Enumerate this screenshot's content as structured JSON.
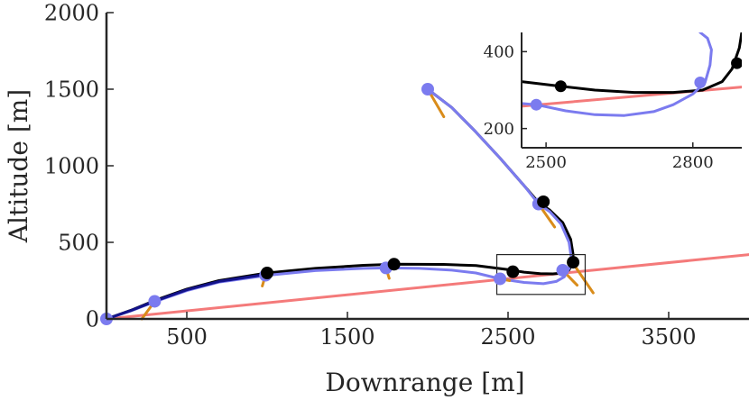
{
  "chart_data": [
    {
      "type": "line",
      "panel": "main",
      "xlabel": "Downrange [m]",
      "ylabel": "Altitude [m]",
      "xlim": [
        0,
        4000
      ],
      "ylim": [
        0,
        2000
      ],
      "xticks": [
        500,
        1500,
        2500,
        3500
      ],
      "xtick_labels": [
        "500",
        "1500",
        "2500",
        "3500"
      ],
      "yticks": [
        0,
        500,
        1000,
        1500,
        2000
      ],
      "ytick_labels": [
        "0",
        "500",
        "1000",
        "1500",
        "2000"
      ],
      "grid": false,
      "series": [
        {
          "name": "ground-line",
          "color": "#f47a7a",
          "x": [
            0,
            4000
          ],
          "y": [
            0,
            420
          ]
        },
        {
          "name": "reference-trajectory",
          "color": "#000000",
          "x": [
            0,
            150,
            300,
            500,
            700,
            1000,
            1300,
            1600,
            1800,
            2100,
            2300,
            2500,
            2600,
            2700,
            2780,
            2840,
            2880,
            2900,
            2905,
            2890,
            2840,
            2760,
            2690,
            2600,
            2450,
            2300,
            2150,
            2000
          ],
          "y": [
            0,
            55,
            120,
            195,
            250,
            300,
            330,
            350,
            357,
            356,
            348,
            322,
            305,
            296,
            294,
            300,
            320,
            362,
            420,
            520,
            630,
            710,
            760,
            870,
            1050,
            1220,
            1380,
            1500
          ]
        },
        {
          "name": "actual-trajectory",
          "color": "#7b7bef",
          "x": [
            0,
            150,
            300,
            500,
            700,
            1000,
            1300,
            1600,
            1750,
            1950,
            2150,
            2300,
            2450,
            2600,
            2720,
            2800,
            2850,
            2880,
            2895,
            2880,
            2830,
            2760,
            2690,
            2600,
            2450,
            2300,
            2150,
            2000
          ],
          "y": [
            0,
            52,
            112,
            185,
            240,
            285,
            315,
            330,
            333,
            330,
            318,
            300,
            262,
            238,
            230,
            245,
            275,
            330,
            390,
            500,
            620,
            700,
            750,
            870,
            1050,
            1220,
            1380,
            1500
          ]
        },
        {
          "name": "connector",
          "color": "#13138a",
          "x": [
            0,
            150,
            300,
            500,
            700,
            1000
          ],
          "y": [
            0,
            54,
            116,
            190,
            245,
            292
          ]
        }
      ],
      "markers": {
        "reference": {
          "color": "#000000",
          "x": [
            1000,
            1790,
            2530,
            2720,
            2905
          ],
          "y": [
            300,
            357,
            308,
            765,
            370
          ]
        },
        "actual": {
          "color": "#7b7bef",
          "x": [
            0,
            300,
            990,
            1740,
            2450,
            2690,
            2840,
            2000
          ],
          "y": [
            0,
            115,
            285,
            333,
            262,
            750,
            318,
            1500
          ]
        }
      },
      "thrust_vectors": {
        "color": "#d98c1a",
        "segments": [
          {
            "x": [
              300,
              220
            ],
            "y": [
              115,
              0
            ]
          },
          {
            "x": [
              990,
              970
            ],
            "y": [
              285,
              215
            ]
          },
          {
            "x": [
              1740,
              1760
            ],
            "y": [
              333,
              265
            ]
          },
          {
            "x": [
              2450,
              2510
            ],
            "y": [
              262,
              250
            ]
          },
          {
            "x": [
              2690,
              2790
            ],
            "y": [
              750,
              600
            ]
          },
          {
            "x": [
              2840,
              2930
            ],
            "y": [
              318,
              220
            ]
          },
          {
            "x": [
              2000,
              2100
            ],
            "y": [
              1500,
              1320
            ]
          },
          {
            "x": [
              2900,
              3030
            ],
            "y": [
              370,
              170
            ]
          }
        ]
      },
      "zoom_box": {
        "x": [
          2430,
          2980
        ],
        "y": [
          160,
          420
        ]
      }
    },
    {
      "type": "line",
      "panel": "inset",
      "xlabel": "",
      "ylabel": "",
      "xlim": [
        2450,
        2900
      ],
      "ylim": [
        150,
        450
      ],
      "xticks": [
        2500,
        2800
      ],
      "xtick_labels": [
        "2500",
        "2800"
      ],
      "yticks": [
        200,
        400
      ],
      "ytick_labels": [
        "200",
        "400"
      ],
      "series": [
        {
          "name": "ground-line",
          "color": "#f47a7a",
          "x": [
            2450,
            2900
          ],
          "y": [
            258,
            308
          ]
        },
        {
          "name": "reference-trajectory",
          "color": "#000000",
          "x": [
            2450,
            2530,
            2600,
            2680,
            2760,
            2820,
            2860,
            2880,
            2895,
            2900
          ],
          "y": [
            322,
            310,
            300,
            294,
            294,
            300,
            322,
            355,
            410,
            450
          ]
        },
        {
          "name": "actual-trajectory",
          "color": "#7b7bef",
          "x": [
            2450,
            2480,
            2540,
            2600,
            2660,
            2720,
            2760,
            2800,
            2825,
            2835,
            2838,
            2830,
            2815
          ],
          "y": [
            265,
            262,
            246,
            236,
            234,
            244,
            262,
            290,
            320,
            365,
            405,
            435,
            450
          ]
        }
      ],
      "markers": {
        "reference": {
          "color": "#000000",
          "x": [
            2530,
            2890
          ],
          "y": [
            310,
            370
          ]
        },
        "actual": {
          "color": "#7b7bef",
          "x": [
            2480,
            2815
          ],
          "y": [
            262,
            320
          ]
        }
      }
    }
  ]
}
